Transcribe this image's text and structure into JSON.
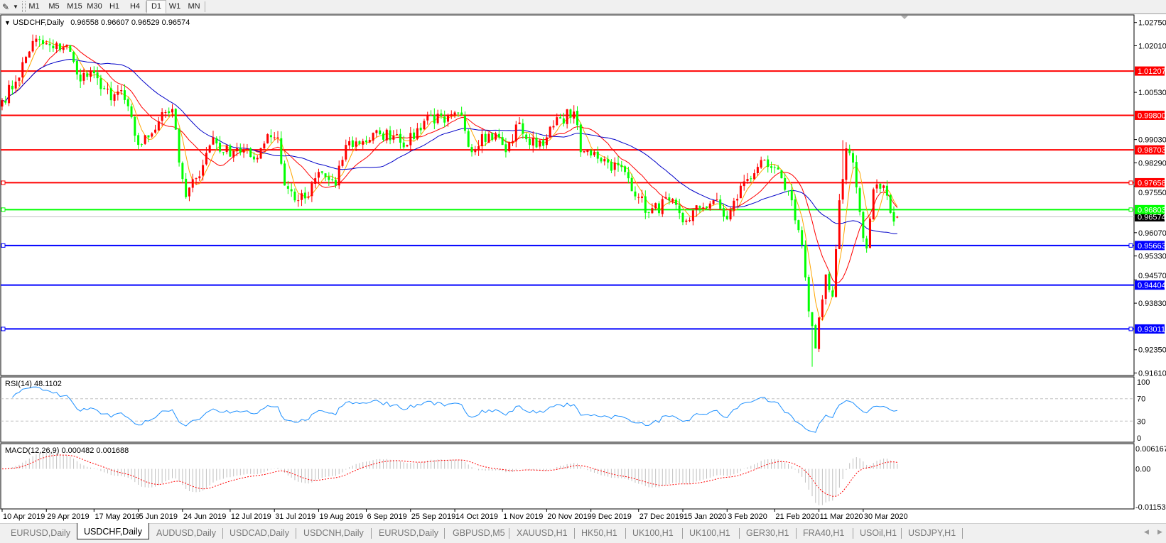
{
  "toolbar": {
    "tool_icon": "line-tool-icon",
    "timeframes": [
      "M1",
      "M5",
      "M15",
      "M30",
      "H1",
      "H4",
      "D1",
      "W1",
      "MN"
    ],
    "active_timeframe": "D1"
  },
  "header": {
    "symbol": "USDCHF,Daily",
    "ohlc": "0.96558 0.96607 0.96529 0.96574"
  },
  "colors": {
    "bull_candle": "#ff0000",
    "bear_candle": "#00ff00",
    "ma_fast": "#ffa500",
    "ma_mid": "#ff0000",
    "ma_slow": "#0000c8",
    "rsi_line": "#1e90ff",
    "macd_hist": "#c0c0c0",
    "macd_signal": "#ff0000",
    "resistance": "#ff0000",
    "pivot": "#00ff00",
    "support": "#0000ff",
    "current_price": "#000000"
  },
  "chart_data": [
    {
      "type": "candlestick",
      "symbol": "USDCHF",
      "timeframe": "Daily",
      "ylim": [
        0.9161,
        1.0275
      ],
      "price_axis_labels": [
        "1.02750",
        "1.02010",
        "1.00530",
        "0.99030",
        "0.98290",
        "0.97550",
        "0.96070",
        "0.95330",
        "0.94570",
        "0.93830",
        "0.92350",
        "0.91610"
      ],
      "date_axis_labels": [
        "10 Apr 2019",
        "29 Apr 2019",
        "17 May 2019",
        "5 Jun 2019",
        "24 Jun 2019",
        "12 Jul 2019",
        "31 Jul 2019",
        "19 Aug 2019",
        "6 Sep 2019",
        "25 Sep 2019",
        "14 Oct 2019",
        "1 Nov 2019",
        "20 Nov 2019",
        "9 Dec 2019",
        "27 Dec 2019",
        "15 Jan 2020",
        "3 Feb 2020",
        "21 Feb 2020",
        "11 Mar 2020",
        "30 Mar 2020"
      ],
      "date_axis_dates": [
        "2019-04-10",
        "2019-04-29",
        "2019-05-17",
        "2019-06-05",
        "2019-06-24",
        "2019-07-12",
        "2019-07-31",
        "2019-08-19",
        "2019-09-06",
        "2019-09-25",
        "2019-10-14",
        "2019-11-01",
        "2019-11-20",
        "2019-12-09",
        "2019-12-27",
        "2020-01-15",
        "2020-02-03",
        "2020-02-21",
        "2020-03-11",
        "2020-03-30"
      ],
      "close_path": [
        [
          "2019-04-10",
          1.0028
        ],
        [
          "2019-04-16",
          1.0087
        ],
        [
          "2019-04-23",
          1.0216
        ],
        [
          "2019-05-01",
          1.0193
        ],
        [
          "2019-05-07",
          1.0204
        ],
        [
          "2019-05-10",
          1.011
        ],
        [
          "2019-05-20",
          1.0098
        ],
        [
          "2019-05-24",
          1.0028
        ],
        [
          "2019-05-29",
          1.006
        ],
        [
          "2019-06-05",
          0.9886
        ],
        [
          "2019-06-10",
          0.991
        ],
        [
          "2019-06-14",
          0.999
        ],
        [
          "2019-06-19",
          1.0
        ],
        [
          "2019-06-21",
          0.983
        ],
        [
          "2019-06-25",
          0.972
        ],
        [
          "2019-06-28",
          0.978
        ],
        [
          "2019-07-05",
          0.991
        ],
        [
          "2019-07-10",
          0.9863
        ],
        [
          "2019-07-16",
          0.9875
        ],
        [
          "2019-07-23",
          0.984
        ],
        [
          "2019-07-29",
          0.992
        ],
        [
          "2019-08-01",
          0.991
        ],
        [
          "2019-08-05",
          0.9757
        ],
        [
          "2019-08-09",
          0.971
        ],
        [
          "2019-08-14",
          0.9722
        ],
        [
          "2019-08-19",
          0.98
        ],
        [
          "2019-08-26",
          0.9757
        ],
        [
          "2019-08-29",
          0.9886
        ],
        [
          "2019-09-05",
          0.9898
        ],
        [
          "2019-09-12",
          0.992
        ],
        [
          "2019-09-19",
          0.992
        ],
        [
          "2019-09-24",
          0.9886
        ],
        [
          "2019-10-02",
          0.998
        ],
        [
          "2019-10-09",
          0.9957
        ],
        [
          "2019-10-16",
          0.998
        ],
        [
          "2019-10-21",
          0.9863
        ],
        [
          "2019-10-24",
          0.992
        ],
        [
          "2019-10-31",
          0.991
        ],
        [
          "2019-11-04",
          0.9863
        ],
        [
          "2019-11-08",
          0.9957
        ],
        [
          "2019-11-13",
          0.9886
        ],
        [
          "2019-11-20",
          0.991
        ],
        [
          "2019-11-26",
          0.997
        ],
        [
          "2019-12-02",
          0.9992
        ],
        [
          "2019-12-04",
          0.9863
        ],
        [
          "2019-12-10",
          0.9863
        ],
        [
          "2019-12-16",
          0.983
        ],
        [
          "2019-12-23",
          0.98
        ],
        [
          "2019-12-27",
          0.972
        ],
        [
          "2020-01-01",
          0.967
        ],
        [
          "2020-01-09",
          0.971
        ],
        [
          "2020-01-15",
          0.964
        ],
        [
          "2020-01-22",
          0.9686
        ],
        [
          "2020-01-28",
          0.971
        ],
        [
          "2020-02-03",
          0.965
        ],
        [
          "2020-02-10",
          0.977
        ],
        [
          "2020-02-14",
          0.9816
        ],
        [
          "2020-02-19",
          0.9816
        ],
        [
          "2020-02-25",
          0.978
        ],
        [
          "2020-02-28",
          0.971
        ],
        [
          "2020-03-04",
          0.9568
        ],
        [
          "2020-03-06",
          0.9357
        ],
        [
          "2020-03-10",
          0.9239
        ],
        [
          "2020-03-13",
          0.9474
        ],
        [
          "2020-03-17",
          0.9404
        ],
        [
          "2020-03-19",
          0.971
        ],
        [
          "2020-03-23",
          0.9875
        ],
        [
          "2020-03-25",
          0.983
        ],
        [
          "2020-03-30",
          0.959
        ],
        [
          "2020-03-31",
          0.9557
        ],
        [
          "2020-04-02",
          0.9745
        ],
        [
          "2020-04-07",
          0.9757
        ],
        [
          "2020-04-09",
          0.967
        ],
        [
          "2020-04-13",
          0.96574
        ]
      ],
      "extremes": [
        {
          "date": "2020-03-09",
          "low": 0.9181
        },
        {
          "date": "2020-03-20",
          "high": 0.9901
        },
        {
          "date": "2019-04-24",
          "high": 1.0236
        }
      ],
      "last_candle": {
        "open": 0.96558,
        "high": 0.96607,
        "low": 0.96529,
        "close": 0.96574
      },
      "moving_averages": [
        {
          "period": 5,
          "color_key": "ma_fast"
        },
        {
          "period": 13,
          "color_key": "ma_mid"
        },
        {
          "period": 30,
          "color_key": "ma_slow"
        }
      ],
      "horizontal_levels": [
        {
          "price": 1.01207,
          "label": "1.01207",
          "kind": "resistance",
          "selected": false
        },
        {
          "price": 0.998,
          "label": "0.99800",
          "kind": "resistance",
          "selected": false
        },
        {
          "price": 0.98703,
          "label": "0.98703",
          "kind": "resistance",
          "selected": false
        },
        {
          "price": 0.97658,
          "label": "0.97658",
          "kind": "resistance",
          "selected": true
        },
        {
          "price": 0.96803,
          "label": "0.96803",
          "kind": "pivot",
          "selected": true
        },
        {
          "price": 0.95663,
          "label": "0.95663",
          "kind": "support",
          "selected": true
        },
        {
          "price": 0.94404,
          "label": "0.94404",
          "kind": "support",
          "selected": false
        },
        {
          "price": 0.93011,
          "label": "0.93011",
          "kind": "support",
          "selected": true
        }
      ],
      "current_price": {
        "price": 0.96574,
        "label": "0.96574"
      }
    },
    {
      "type": "line",
      "indicator": "RSI",
      "label": "RSI(14) 48.1102",
      "period": 14,
      "ylim": [
        0,
        100
      ],
      "levels": [
        70,
        30
      ],
      "axis_labels": [
        "100",
        "70",
        "30",
        "0"
      ]
    },
    {
      "type": "bar",
      "indicator": "MACD",
      "label": "MACD(12,26,9) 0.000482 0.001688",
      "params": [
        12,
        26,
        9
      ],
      "ylim": [
        -0.011531,
        0.006167
      ],
      "axis_labels": [
        "0.006167",
        "0.00",
        "-0.011531"
      ]
    }
  ],
  "tabs": [
    {
      "label": "EURUSD,Daily",
      "active": false
    },
    {
      "label": "USDCHF,Daily",
      "active": true
    },
    {
      "label": "AUDUSD,Daily",
      "active": false
    },
    {
      "label": "USDCAD,Daily",
      "active": false
    },
    {
      "label": "USDCNH,Daily",
      "active": false
    },
    {
      "label": "EURUSD,Daily",
      "active": false
    },
    {
      "label": "GBPUSD,M5",
      "active": false
    },
    {
      "label": "XAUUSD,H1",
      "active": false
    },
    {
      "label": "HK50,H1",
      "active": false
    },
    {
      "label": "UK100,H1",
      "active": false
    },
    {
      "label": "UK100,H1",
      "active": false
    },
    {
      "label": "GER30,H1",
      "active": false
    },
    {
      "label": "FRA40,H1",
      "active": false
    },
    {
      "label": "USOil,H1",
      "active": false
    },
    {
      "label": "USDJPY,H1",
      "active": false
    }
  ],
  "tab_scroll": {
    "left_icon": "scroll-left-icon",
    "right_icon": "scroll-right-icon"
  }
}
